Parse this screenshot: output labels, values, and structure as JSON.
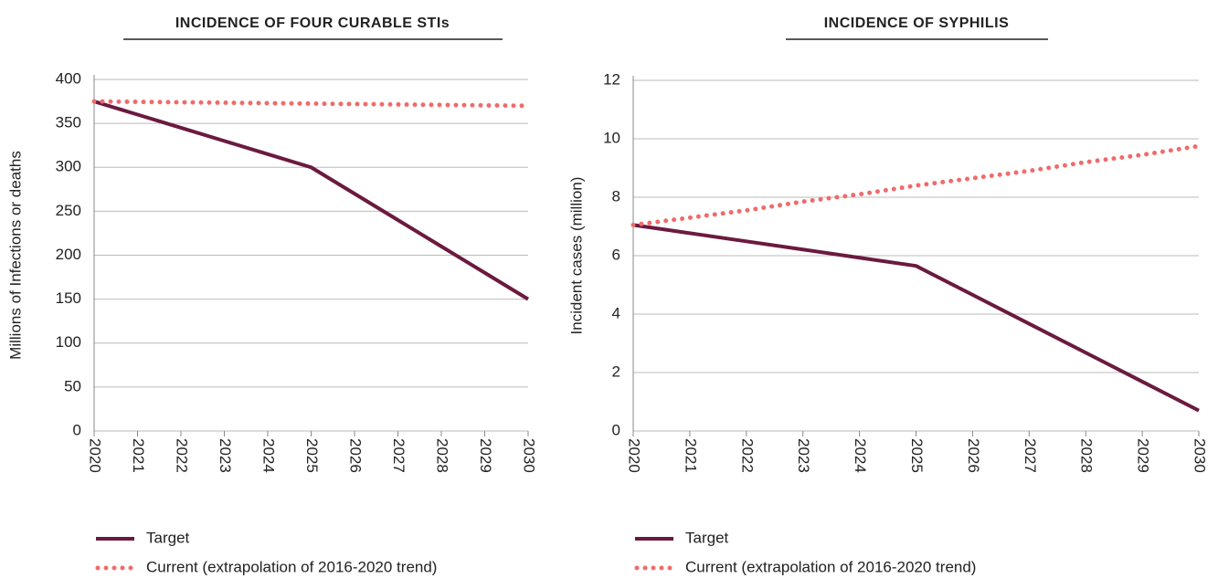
{
  "chart_data": [
    {
      "type": "line",
      "title": "INCIDENCE OF FOUR CURABLE STIs",
      "y_label": "Millions of Infections or deaths",
      "categories": [
        "2020",
        "2021",
        "2022",
        "2023",
        "2024",
        "2025",
        "2026",
        "2027",
        "2028",
        "2029",
        "2030"
      ],
      "series": [
        {
          "name": "Target",
          "color": "#6b1a3f",
          "style": "solid",
          "values": [
            375,
            360,
            345,
            330,
            315,
            300,
            270,
            240,
            210,
            180,
            150
          ]
        },
        {
          "name": "Current (extrapolation of 2016-2020 trend)",
          "color": "#ef6b6b",
          "style": "dotted",
          "values": [
            375,
            374.5,
            374,
            373.5,
            373,
            372.5,
            372,
            371.5,
            371,
            370.5,
            370
          ]
        }
      ],
      "ylim": [
        0,
        400
      ],
      "yticks": [
        0,
        50,
        100,
        150,
        200,
        250,
        300,
        350,
        400
      ],
      "grid": true,
      "legend": "bottom"
    },
    {
      "type": "line",
      "title": "INCIDENCE OF SYPHILIS",
      "y_label": "Incident cases (million)",
      "categories": [
        "2020",
        "2021",
        "2022",
        "2023",
        "2024",
        "2025",
        "2026",
        "2027",
        "2028",
        "2029",
        "2030"
      ],
      "series": [
        {
          "name": "Target",
          "color": "#6b1a3f",
          "style": "solid",
          "values": [
            7.05,
            6.77,
            6.49,
            6.21,
            5.93,
            5.65,
            4.66,
            3.67,
            2.68,
            1.69,
            0.7
          ]
        },
        {
          "name": "Current (extrapolation of 2016-2020 trend)",
          "color": "#ef6b6b",
          "style": "dotted",
          "values": [
            7.05,
            7.3,
            7.55,
            7.85,
            8.1,
            8.4,
            8.65,
            8.9,
            9.2,
            9.45,
            9.75
          ]
        }
      ],
      "ylim": [
        0,
        12
      ],
      "yticks": [
        0,
        2,
        4,
        6,
        8,
        10,
        12
      ],
      "grid": true,
      "legend": "bottom"
    }
  ]
}
